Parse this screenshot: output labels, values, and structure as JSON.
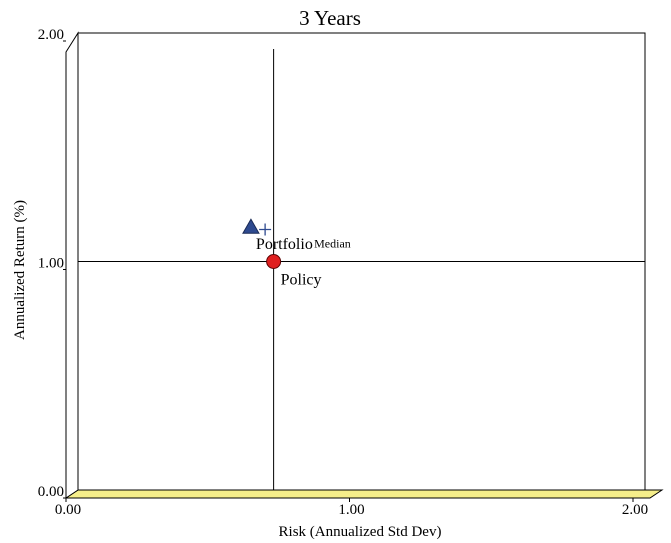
{
  "chart_data": {
    "type": "scatter",
    "title": "3 Years",
    "xlabel": "Risk (Annualized Std Dev)",
    "ylabel": "Annualized Return (%)",
    "xlim": [
      0,
      2
    ],
    "ylim": [
      0,
      2
    ],
    "xticks": [
      "0.00",
      "1.00",
      "2.00"
    ],
    "yticks": [
      "0.00",
      "1.00",
      "2.00"
    ],
    "grid": false,
    "crosshair": {
      "x": 0.69,
      "y": 1.0
    },
    "points": [
      {
        "label": "Portfolio",
        "x": 0.61,
        "y": 1.15,
        "marker": "triangle",
        "color": "#2e4a8f"
      },
      {
        "label": "Median",
        "x": 0.66,
        "y": 1.14,
        "marker": "plus",
        "color": "#2e4a8f"
      },
      {
        "label": "Policy",
        "x": 0.69,
        "y": 1.0,
        "marker": "circle",
        "color": "#e02020"
      }
    ],
    "floor_color": "#f5ee8a"
  }
}
